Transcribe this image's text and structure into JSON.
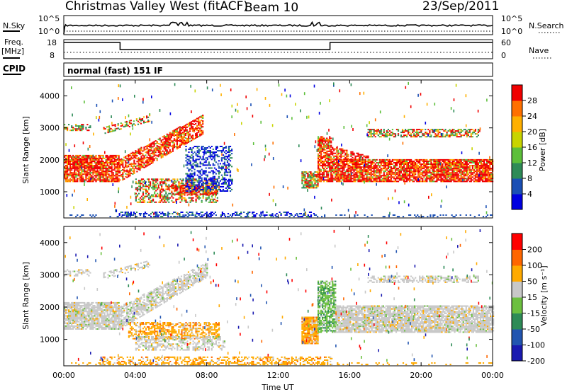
{
  "header": {
    "title": "Christmas Valley West (fitACF)",
    "beam": "Beam 10",
    "date": "23/Sep/2011",
    "mode": "normal (fast) 151 IF"
  },
  "labels": {
    "nsky": "N.Sky",
    "nsearch": "N.Search",
    "freq": "Freq.",
    "freq_unit": "[MHz]",
    "nave": "Nave",
    "cpid": "CPID",
    "sky_ticks": [
      "10^5",
      "10^0"
    ],
    "search_ticks": [
      "10^5",
      "10^0"
    ],
    "freq_ticks": [
      "18",
      "8"
    ],
    "nave_ticks": [
      "60",
      "0"
    ]
  },
  "chart_data": [
    {
      "type": "heatmap",
      "name": "power",
      "ylabel": "Slant Range [km]",
      "colorbar_label": "Power [dB]",
      "yticks": [
        "1000",
        "2000",
        "3000",
        "4000"
      ],
      "ylim": [
        180,
        4500
      ],
      "colorbar_ticks": [
        "4",
        "8",
        "12",
        "16",
        "20",
        "24",
        "28"
      ],
      "colorbar_colors": [
        "#0000e0",
        "#1a4fb5",
        "#2e8b57",
        "#5cbf3a",
        "#c8d400",
        "#ffb000",
        "#ff7000",
        "#f00000"
      ]
    },
    {
      "type": "heatmap",
      "name": "velocity",
      "ylabel": "Slant Range [km]",
      "colorbar_label": "Velocity [m s⁻¹]",
      "yticks": [
        "1000",
        "2000",
        "3000",
        "4000"
      ],
      "ylim": [
        180,
        4500
      ],
      "colorbar_ticks": [
        "200",
        "100",
        "50",
        "15",
        "-15",
        "-50",
        "-100",
        "-200"
      ],
      "colorbar_colors": [
        "#1a1ab0",
        "#2255b0",
        "#2e8b57",
        "#6cc040",
        "#c8c8c8",
        "#ffaa00",
        "#ff6600",
        "#ff0000"
      ]
    }
  ],
  "xaxis": {
    "label": "Time UT",
    "ticks": [
      "00:00",
      "04:00",
      "08:00",
      "12:00",
      "16:00",
      "20:00",
      "00:00"
    ]
  },
  "freq_series": {
    "x": [
      0,
      3.15,
      3.15,
      14.9,
      14.9,
      24
    ],
    "y": [
      16.5,
      16.5,
      12.8,
      12.8,
      16.5,
      16.5
    ]
  },
  "colors": {
    "power_band": "#ff2000",
    "velocity_gray": "#c8c8c8"
  }
}
